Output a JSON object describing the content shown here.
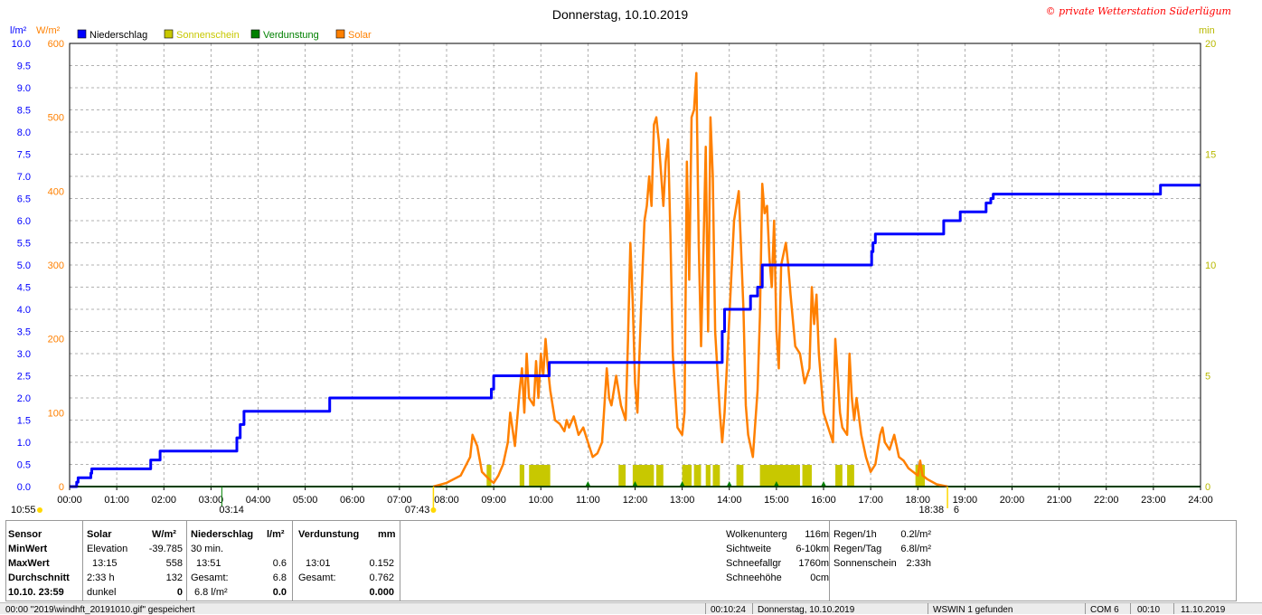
{
  "title": "Donnerstag, 10.10.2019",
  "copyright": "© private Wetterstation Süderlügum",
  "legend": [
    {
      "label": "Niederschlag",
      "color": "#0000ff"
    },
    {
      "label": "Sonnenschein",
      "color": "#c8c800"
    },
    {
      "label": "Verdunstung",
      "color": "#008000"
    },
    {
      "label": "Solar",
      "color": "#ff8000"
    }
  ],
  "chart_data": {
    "type": "line",
    "x_ticks": [
      "00:00",
      "01:00",
      "02:00",
      "03:00",
      "04:00",
      "05:00",
      "06:00",
      "07:00",
      "08:00",
      "09:00",
      "10:00",
      "11:00",
      "12:00",
      "13:00",
      "14:00",
      "15:00",
      "16:00",
      "17:00",
      "18:00",
      "19:00",
      "20:00",
      "21:00",
      "22:00",
      "23:00",
      "24:00"
    ],
    "xlim": [
      0,
      24
    ],
    "y_left1": {
      "unit": "l/m²",
      "color": "#0000ff",
      "ylim": [
        0,
        10
      ],
      "ticks": [
        "0.0",
        "0.5",
        "1.0",
        "1.5",
        "2.0",
        "2.5",
        "3.0",
        "3.5",
        "4.0",
        "4.5",
        "5.0",
        "5.5",
        "6.0",
        "6.5",
        "7.0",
        "7.5",
        "8.0",
        "8.5",
        "9.0",
        "9.5",
        "10.0"
      ]
    },
    "y_left2": {
      "unit": "W/m²",
      "color": "#ff8000",
      "ylim": [
        0,
        600
      ],
      "ticks": [
        "0",
        "100",
        "200",
        "300",
        "400",
        "500",
        "600"
      ]
    },
    "y_right": {
      "unit": "min",
      "color": "#b8b800",
      "ylim": [
        0,
        20
      ],
      "ticks": [
        "0",
        "5",
        "10",
        "15",
        "20"
      ]
    },
    "markers": [
      {
        "label": "10:55",
        "x": 0.0
      },
      {
        "label": "03:14",
        "x": 3.23
      },
      {
        "label": "07:43",
        "x": 7.72
      },
      {
        "label": "18:38",
        "x": 18.63
      },
      {
        "label": "6",
        "x": 18.78
      }
    ],
    "series": [
      {
        "name": "Niederschlag",
        "axis": "left1",
        "color": "#0000ff",
        "step": true,
        "points": [
          [
            0,
            0
          ],
          [
            0.15,
            0.1
          ],
          [
            0.18,
            0.2
          ],
          [
            0.45,
            0.3
          ],
          [
            0.47,
            0.4
          ],
          [
            1.7,
            0.4
          ],
          [
            1.72,
            0.6
          ],
          [
            1.9,
            0.6
          ],
          [
            1.92,
            0.8
          ],
          [
            3.5,
            0.8
          ],
          [
            3.55,
            1.1
          ],
          [
            3.62,
            1.4
          ],
          [
            3.7,
            1.7
          ],
          [
            5.5,
            1.7
          ],
          [
            5.52,
            2.0
          ],
          [
            8.9,
            2.0
          ],
          [
            8.95,
            2.2
          ],
          [
            9.0,
            2.5
          ],
          [
            10.15,
            2.5
          ],
          [
            10.18,
            2.8
          ],
          [
            13.8,
            2.8
          ],
          [
            13.85,
            3.5
          ],
          [
            13.9,
            4.0
          ],
          [
            14.4,
            4.0
          ],
          [
            14.45,
            4.3
          ],
          [
            14.6,
            4.5
          ],
          [
            14.7,
            5.0
          ],
          [
            17.0,
            5.0
          ],
          [
            17.02,
            5.3
          ],
          [
            17.05,
            5.5
          ],
          [
            17.1,
            5.7
          ],
          [
            18.5,
            5.7
          ],
          [
            18.55,
            6.0
          ],
          [
            18.85,
            6.0
          ],
          [
            18.9,
            6.2
          ],
          [
            19.4,
            6.2
          ],
          [
            19.45,
            6.4
          ],
          [
            19.55,
            6.5
          ],
          [
            19.6,
            6.6
          ],
          [
            23.1,
            6.6
          ],
          [
            23.15,
            6.8
          ],
          [
            24,
            6.8
          ]
        ]
      },
      {
        "name": "Solar",
        "axis": "left2",
        "color": "#ff8000",
        "points": [
          [
            7.72,
            0
          ],
          [
            8.0,
            5
          ],
          [
            8.3,
            15
          ],
          [
            8.5,
            40
          ],
          [
            8.55,
            70
          ],
          [
            8.65,
            55
          ],
          [
            8.75,
            20
          ],
          [
            8.9,
            10
          ],
          [
            9.0,
            5
          ],
          [
            9.1,
            15
          ],
          [
            9.2,
            30
          ],
          [
            9.3,
            60
          ],
          [
            9.35,
            100
          ],
          [
            9.45,
            55
          ],
          [
            9.55,
            130
          ],
          [
            9.6,
            160
          ],
          [
            9.65,
            100
          ],
          [
            9.7,
            180
          ],
          [
            9.75,
            120
          ],
          [
            9.85,
            110
          ],
          [
            9.9,
            170
          ],
          [
            9.95,
            120
          ],
          [
            10.0,
            180
          ],
          [
            10.05,
            150
          ],
          [
            10.1,
            200
          ],
          [
            10.15,
            160
          ],
          [
            10.2,
            130
          ],
          [
            10.3,
            90
          ],
          [
            10.4,
            85
          ],
          [
            10.5,
            75
          ],
          [
            10.55,
            90
          ],
          [
            10.6,
            80
          ],
          [
            10.7,
            95
          ],
          [
            10.8,
            70
          ],
          [
            10.9,
            80
          ],
          [
            11.0,
            60
          ],
          [
            11.1,
            40
          ],
          [
            11.2,
            45
          ],
          [
            11.3,
            60
          ],
          [
            11.35,
            110
          ],
          [
            11.4,
            160
          ],
          [
            11.45,
            120
          ],
          [
            11.5,
            110
          ],
          [
            11.6,
            150
          ],
          [
            11.7,
            110
          ],
          [
            11.8,
            90
          ],
          [
            11.85,
            200
          ],
          [
            11.9,
            330
          ],
          [
            11.95,
            250
          ],
          [
            12.0,
            140
          ],
          [
            12.05,
            100
          ],
          [
            12.15,
            280
          ],
          [
            12.2,
            360
          ],
          [
            12.25,
            380
          ],
          [
            12.3,
            420
          ],
          [
            12.35,
            380
          ],
          [
            12.4,
            490
          ],
          [
            12.45,
            500
          ],
          [
            12.5,
            470
          ],
          [
            12.6,
            380
          ],
          [
            12.65,
            440
          ],
          [
            12.7,
            470
          ],
          [
            12.75,
            340
          ],
          [
            12.8,
            180
          ],
          [
            12.9,
            80
          ],
          [
            13.0,
            70
          ],
          [
            13.05,
            100
          ],
          [
            13.1,
            440
          ],
          [
            13.15,
            280
          ],
          [
            13.2,
            500
          ],
          [
            13.25,
            510
          ],
          [
            13.3,
            560
          ],
          [
            13.35,
            330
          ],
          [
            13.4,
            190
          ],
          [
            13.45,
            320
          ],
          [
            13.5,
            460
          ],
          [
            13.55,
            210
          ],
          [
            13.6,
            500
          ],
          [
            13.65,
            420
          ],
          [
            13.7,
            210
          ],
          [
            13.8,
            100
          ],
          [
            13.85,
            60
          ],
          [
            13.9,
            100
          ],
          [
            14.0,
            230
          ],
          [
            14.1,
            360
          ],
          [
            14.2,
            400
          ],
          [
            14.25,
            320
          ],
          [
            14.3,
            240
          ],
          [
            14.35,
            110
          ],
          [
            14.4,
            70
          ],
          [
            14.5,
            40
          ],
          [
            14.6,
            130
          ],
          [
            14.65,
            230
          ],
          [
            14.7,
            410
          ],
          [
            14.75,
            370
          ],
          [
            14.8,
            380
          ],
          [
            14.85,
            310
          ],
          [
            14.9,
            270
          ],
          [
            14.95,
            360
          ],
          [
            15.0,
            210
          ],
          [
            15.05,
            160
          ],
          [
            15.1,
            300
          ],
          [
            15.2,
            330
          ],
          [
            15.25,
            300
          ],
          [
            15.3,
            260
          ],
          [
            15.4,
            190
          ],
          [
            15.5,
            180
          ],
          [
            15.6,
            140
          ],
          [
            15.7,
            160
          ],
          [
            15.75,
            270
          ],
          [
            15.8,
            220
          ],
          [
            15.85,
            260
          ],
          [
            15.9,
            180
          ],
          [
            16.0,
            100
          ],
          [
            16.1,
            80
          ],
          [
            16.2,
            60
          ],
          [
            16.25,
            200
          ],
          [
            16.3,
            150
          ],
          [
            16.35,
            100
          ],
          [
            16.4,
            80
          ],
          [
            16.5,
            70
          ],
          [
            16.55,
            180
          ],
          [
            16.6,
            120
          ],
          [
            16.65,
            90
          ],
          [
            16.7,
            120
          ],
          [
            16.8,
            70
          ],
          [
            16.9,
            40
          ],
          [
            17.0,
            20
          ],
          [
            17.1,
            30
          ],
          [
            17.2,
            70
          ],
          [
            17.25,
            80
          ],
          [
            17.3,
            60
          ],
          [
            17.4,
            50
          ],
          [
            17.5,
            70
          ],
          [
            17.6,
            40
          ],
          [
            17.7,
            35
          ],
          [
            17.8,
            25
          ],
          [
            17.9,
            20
          ],
          [
            18.0,
            15
          ],
          [
            18.05,
            35
          ],
          [
            18.1,
            15
          ],
          [
            18.2,
            10
          ],
          [
            18.4,
            3
          ],
          [
            18.63,
            0
          ]
        ]
      },
      {
        "name": "Sonnenschein",
        "axis": "right",
        "color": "#c8c800",
        "bars": true,
        "intervals": [
          [
            8.85,
            8.95
          ],
          [
            9.55,
            9.65
          ],
          [
            9.75,
            10.2
          ],
          [
            11.65,
            11.8
          ],
          [
            11.95,
            12.4
          ],
          [
            12.45,
            12.6
          ],
          [
            13.0,
            13.2
          ],
          [
            13.25,
            13.4
          ],
          [
            13.5,
            13.6
          ],
          [
            13.65,
            13.8
          ],
          [
            14.15,
            14.3
          ],
          [
            14.65,
            15.5
          ],
          [
            15.55,
            15.75
          ],
          [
            16.25,
            16.4
          ],
          [
            16.5,
            16.65
          ],
          [
            17.95,
            18.15
          ]
        ]
      },
      {
        "name": "Verdunstung",
        "axis": "right",
        "color": "#008000",
        "points": [
          [
            0,
            0
          ],
          [
            24,
            0
          ]
        ]
      }
    ]
  },
  "panel": {
    "headers": {
      "sensor": "Sensor",
      "solar": "Solar",
      "solar_unit": "W/m²",
      "nieder": "Niederschlag",
      "nieder_unit": "l/m²",
      "verd": "Verdunstung",
      "verd_unit": "mm"
    },
    "rows": {
      "minwert": "MinWert",
      "maxwert": "MaxWert",
      "durchschnitt": "Durchschnitt",
      "datetime": "10.10. 23:59"
    },
    "solar": {
      "r1_label": "Elevation",
      "r1_val": "-39.785",
      "r2_label": "13:15",
      "r2_val": "558",
      "r3_label": "2:33 h",
      "r3_val": "132",
      "r4_label": "dunkel",
      "r4_val": "0"
    },
    "nieder": {
      "r1_label": "30 min.",
      "r1_val": "",
      "r2_label": "13:51",
      "r2_val": "0.6",
      "r3_label": "Gesamt:",
      "r3_val": "6.8",
      "r4_label": "6.8 l/m²",
      "r4_val": "0.0"
    },
    "verd": {
      "r2_label": "13:01",
      "r2_val": "0.152",
      "r3_label": "Gesamt:",
      "r3_val": "0.762",
      "r4_val": "0.000"
    },
    "info1": [
      {
        "label": "Wolkenunterg",
        "value": "116m"
      },
      {
        "label": "Sichtweite",
        "value": "6-10km"
      },
      {
        "label": "Schneefallgr",
        "value": "1760m"
      },
      {
        "label": "Schneehöhe",
        "value": "0cm"
      }
    ],
    "info2": [
      {
        "label": "Regen/1h",
        "value": "0.2l/m²"
      },
      {
        "label": "Regen/Tag",
        "value": "6.8l/m²"
      },
      {
        "label": "Sonnenschein",
        "value": "2:33h"
      }
    ]
  },
  "status": {
    "s1": "00:00  \"2019\\windhft_20191010.gif\" gespeichert",
    "s2": "00:10:24",
    "s3": "Donnerstag, 10.10.2019",
    "s4": "WSWIN 1 gefunden",
    "s5": "COM 6",
    "s6": "00:10",
    "s7": "11.10.2019"
  }
}
